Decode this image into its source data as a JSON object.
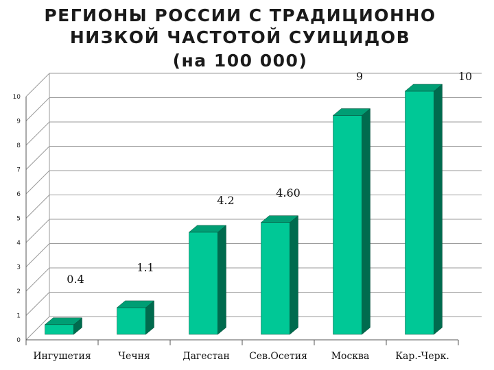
{
  "title": {
    "line1": "РЕГИОНЫ  РОССИИ  С ТРАДИЦИОННО",
    "line2": "НИЗКОЙ  ЧАСТОТОЙ  СУИЦИДОВ",
    "line3": "(на 100 000)"
  },
  "colors": {
    "bar_front": "#00c896",
    "bar_side": "#006b4e",
    "bar_top": "#009e74",
    "grid": "#9a9a9a"
  },
  "chart_data": {
    "type": "bar",
    "categories": [
      "Ингушетия",
      "Чечня",
      "Дагестан",
      "Сев.Осетия",
      "Москва",
      "Кар.-Черк."
    ],
    "values": [
      0.4,
      1.1,
      4.2,
      4.6,
      9,
      10
    ],
    "data_labels": [
      "0.4",
      "1.1",
      "4.2",
      "4.60",
      "9",
      "10"
    ],
    "ylim": [
      0,
      10
    ],
    "yticks": [
      "0",
      "1",
      "2",
      "3",
      "4",
      "5",
      "6",
      "7",
      "8",
      "9",
      "10"
    ],
    "grid": true,
    "three_d": true
  }
}
